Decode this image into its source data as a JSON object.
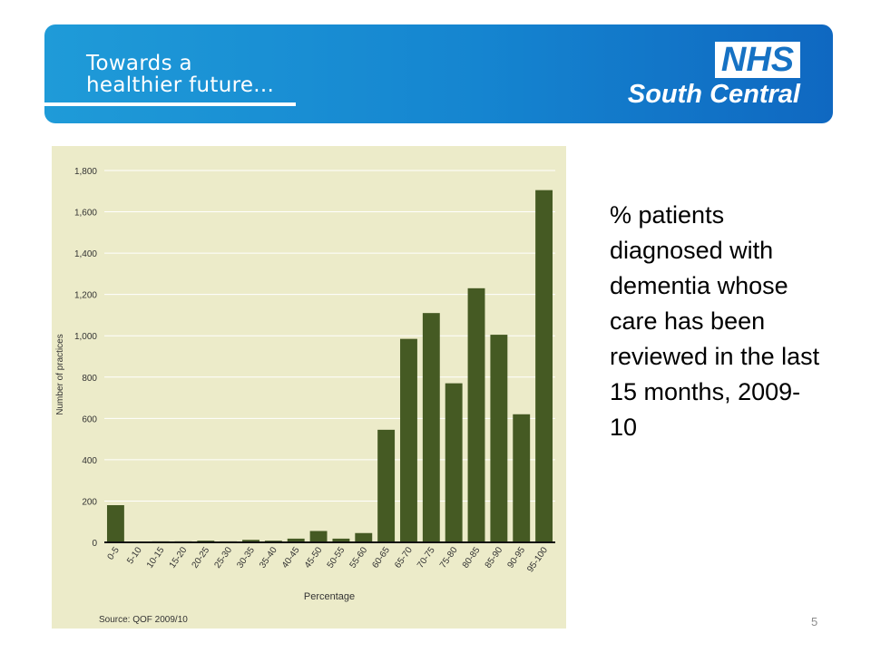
{
  "banner": {
    "tagline_line1": "Towards a",
    "tagline_line2": "healthier future...",
    "logo_text": "NHS",
    "org_name": "South Central",
    "gradient_start": "#1f9bd8",
    "gradient_end": "#0f68c1"
  },
  "caption": "% patients diagnosed with dementia whose care has been reviewed in the last 15 months, 2009-10",
  "slide_number": "5",
  "chart_data": {
    "type": "bar",
    "categories": [
      "0-5",
      "5-10",
      "10-15",
      "15-20",
      "20-25",
      "25-30",
      "30-35",
      "35-40",
      "40-45",
      "45-50",
      "50-55",
      "55-60",
      "60-65",
      "65-70",
      "70-75",
      "75-80",
      "80-85",
      "85-90",
      "90-95",
      "95-100"
    ],
    "values": [
      180,
      3,
      5,
      5,
      8,
      5,
      12,
      8,
      18,
      55,
      18,
      45,
      545,
      985,
      1110,
      770,
      1230,
      1005,
      620,
      1705
    ],
    "xlabel": "Percentage",
    "ylabel": "Number of practices",
    "ylim": [
      0,
      1800
    ],
    "yticks": [
      0,
      200,
      400,
      600,
      800,
      1000,
      1200,
      1400,
      1600,
      1800
    ],
    "ytick_labels": [
      "0",
      "200",
      "400",
      "600",
      "800",
      "1,000",
      "1,200",
      "1,400",
      "1,600",
      "1,800"
    ],
    "source": "Source: QOF 2009/10",
    "grid": true,
    "bar_color": "#455a23",
    "background_color": "#ecebc9"
  }
}
